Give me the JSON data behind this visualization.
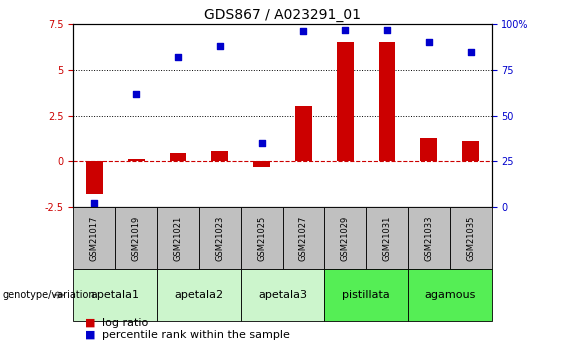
{
  "title": "GDS867 / A023291_01",
  "samples": [
    "GSM21017",
    "GSM21019",
    "GSM21021",
    "GSM21023",
    "GSM21025",
    "GSM21027",
    "GSM21029",
    "GSM21031",
    "GSM21033",
    "GSM21035"
  ],
  "log_ratio": [
    -1.8,
    0.15,
    0.45,
    0.55,
    -0.3,
    3.0,
    6.5,
    6.5,
    1.3,
    1.1
  ],
  "percentile_rank": [
    2,
    62,
    82,
    88,
    35,
    96,
    97,
    97,
    90,
    85
  ],
  "ylim_left": [
    -2.5,
    7.5
  ],
  "ylim_right": [
    0,
    100
  ],
  "bar_color": "#cc0000",
  "dot_color": "#0000cc",
  "zero_line_color": "#cc0000",
  "dotted_line_color": "#000000",
  "groups": [
    {
      "name": "apetala1",
      "start": 0,
      "end": 2,
      "color": "#ccf5cc"
    },
    {
      "name": "apetala2",
      "start": 2,
      "end": 4,
      "color": "#ccf5cc"
    },
    {
      "name": "apetala3",
      "start": 4,
      "end": 6,
      "color": "#ccf5cc"
    },
    {
      "name": "pistillata",
      "start": 6,
      "end": 8,
      "color": "#55ee55"
    },
    {
      "name": "agamous",
      "start": 8,
      "end": 10,
      "color": "#55ee55"
    }
  ],
  "sample_box_color": "#c0c0c0",
  "title_fontsize": 10,
  "tick_fontsize": 7,
  "sample_fontsize": 6,
  "group_fontsize": 8,
  "legend_fontsize": 8,
  "left_yticks": [
    -2.5,
    0,
    2.5,
    5.0,
    7.5
  ],
  "left_ytick_labels": [
    "-2.5",
    "0",
    "2.5",
    "5",
    "7.5"
  ],
  "right_yticks": [
    0,
    25,
    50,
    75,
    100
  ],
  "right_ytick_labels": [
    "0",
    "25",
    "50",
    "75",
    "100%"
  ]
}
